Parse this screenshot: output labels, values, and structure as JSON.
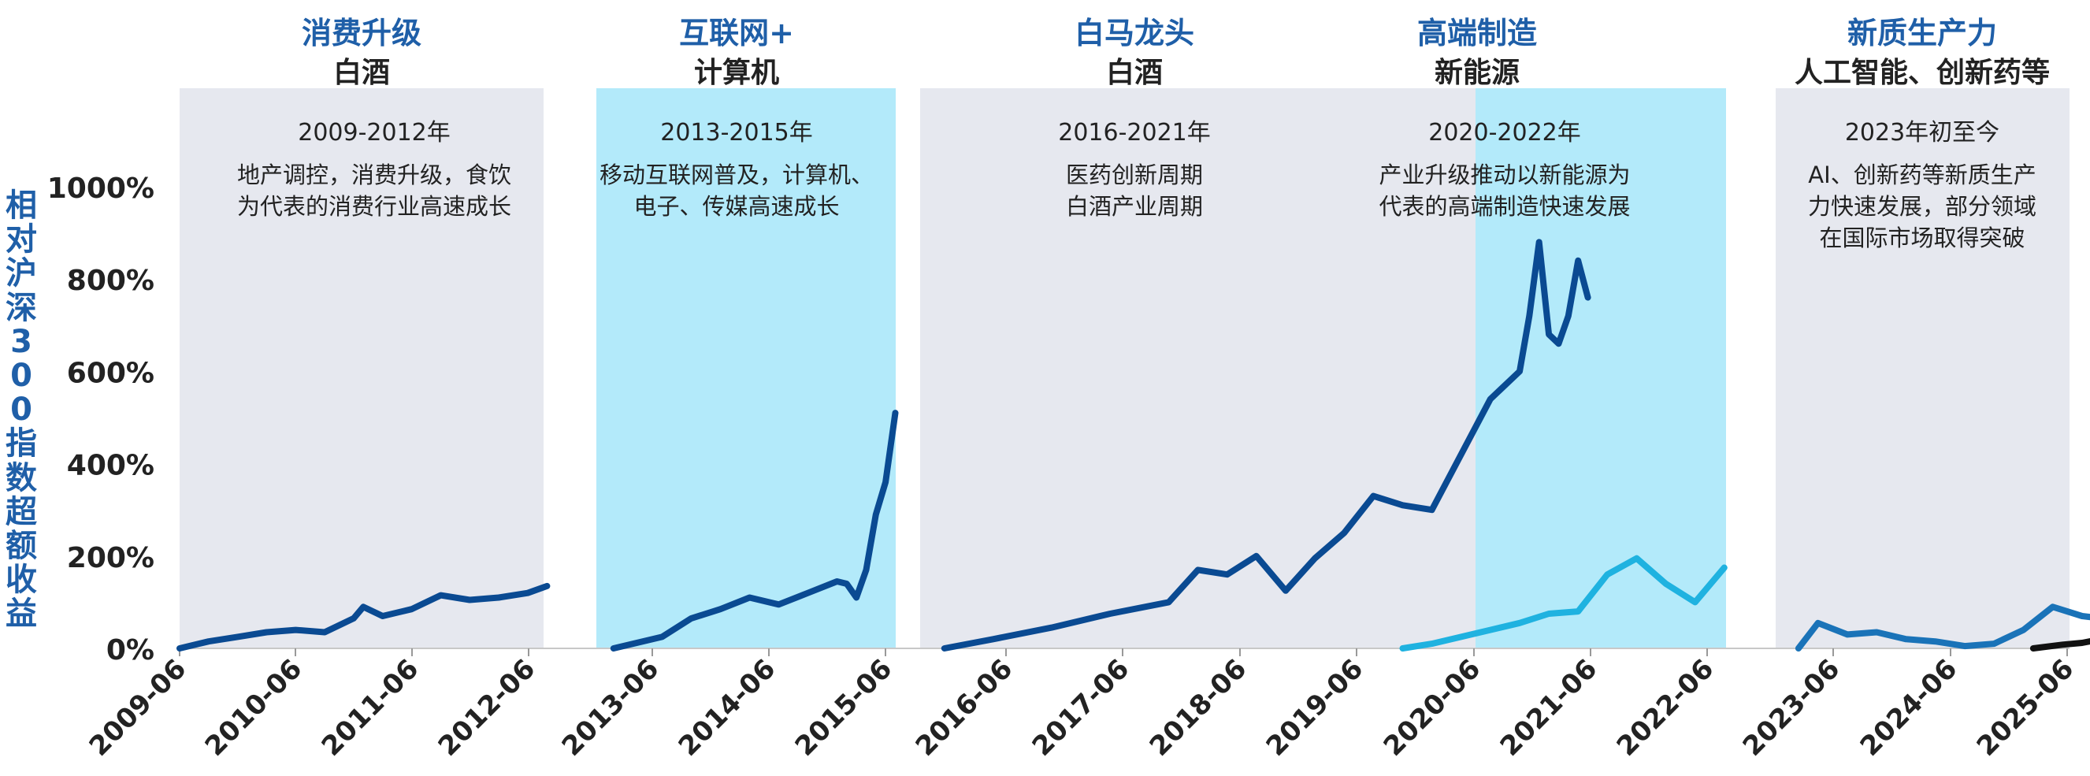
{
  "chart_data": {
    "type": "line",
    "ylabel": "相对沪深300指数超额收益",
    "y_ticks": [
      "0%",
      "200%",
      "400%",
      "600%",
      "800%",
      "1000%"
    ],
    "ylim": [
      0,
      1150
    ],
    "x_ticks": [
      "2009-06",
      "2010-06",
      "2011-06",
      "2012-06",
      "2013-06",
      "2014-06",
      "2015-06",
      "2016-06",
      "2017-06",
      "2018-06",
      "2019-06",
      "2020-06",
      "2021-06",
      "2022-06",
      "2023-06",
      "2024-06",
      "2025-06"
    ],
    "colors": {
      "band_grey": "#e6e8ef",
      "band_cyan": "#b3eafa",
      "dark_blue": "#0a4a92",
      "light_blue": "#1fb2e0",
      "mid_blue": "#1a73b8",
      "black": "#111111",
      "title_blue": "#1f5fa8"
    },
    "periods": [
      {
        "title": "消费升级",
        "subtitle": "白酒",
        "years": "2009-2012年",
        "desc": [
          "地产调控，消费升级，食饮",
          "为代表的消费行业高速成长"
        ],
        "band": "grey"
      },
      {
        "title": "互联网+",
        "subtitle": "计算机",
        "years": "2013-2015年",
        "desc": [
          "移动互联网普及，计算机、",
          "电子、传媒高速成长"
        ],
        "band": "cyan"
      },
      {
        "title": "白马龙头",
        "subtitle": "白酒",
        "years": "2016-2021年",
        "desc": [
          "医药创新周期",
          "白酒产业周期"
        ],
        "band": "grey"
      },
      {
        "title": "高端制造",
        "subtitle": "新能源",
        "years": "2020-2022年",
        "desc": [
          "产业升级推动以新能源为",
          "代表的高端制造快速发展"
        ],
        "band": "cyan"
      },
      {
        "title": "新质生产力",
        "subtitle": "人工智能、创新药等",
        "years": "2023年初至今",
        "desc": [
          "AI、创新药等新质生产",
          "力快速发展，部分领域",
          "在国际市场取得突破"
        ],
        "band": "grey"
      }
    ],
    "series": [
      {
        "color": "dark_blue",
        "x": [
          "2009-06",
          "2009-09",
          "2009-12",
          "2010-03",
          "2010-06",
          "2010-09",
          "2010-12",
          "2011-01",
          "2011-03",
          "2011-06",
          "2011-09",
          "2011-12",
          "2012-03",
          "2012-06",
          "2012-08"
        ],
        "values": [
          0,
          15,
          25,
          35,
          40,
          35,
          65,
          90,
          70,
          85,
          115,
          105,
          110,
          120,
          135
        ]
      },
      {
        "color": "dark_blue",
        "x": [
          "2013-01",
          "2013-06",
          "2013-09",
          "2013-12",
          "2014-03",
          "2014-06",
          "2014-09",
          "2014-12",
          "2015-01",
          "2015-02",
          "2015-03",
          "2015-04",
          "2015-05",
          "2015-06"
        ],
        "values": [
          0,
          25,
          65,
          85,
          110,
          95,
          120,
          145,
          140,
          110,
          170,
          290,
          360,
          510
        ]
      },
      {
        "color": "dark_blue",
        "x": [
          "2016-01",
          "2016-06",
          "2016-12",
          "2017-06",
          "2017-12",
          "2018-03",
          "2018-06",
          "2018-09",
          "2018-12",
          "2019-03",
          "2019-06",
          "2019-09",
          "2019-12",
          "2020-03",
          "2020-06",
          "2020-09",
          "2020-12",
          "2021-01",
          "2021-02",
          "2021-03",
          "2021-04",
          "2021-05",
          "2021-06",
          "2021-07"
        ],
        "values": [
          0,
          20,
          45,
          75,
          100,
          170,
          160,
          200,
          125,
          195,
          250,
          330,
          310,
          300,
          420,
          540,
          600,
          720,
          880,
          680,
          660,
          720,
          840,
          760
        ]
      },
      {
        "color": "light_blue",
        "x": [
          "2019-12",
          "2020-03",
          "2020-06",
          "2020-09",
          "2020-12",
          "2021-03",
          "2021-06",
          "2021-09",
          "2021-12",
          "2022-03",
          "2022-06",
          "2022-09"
        ],
        "values": [
          0,
          10,
          25,
          40,
          55,
          75,
          80,
          160,
          195,
          140,
          100,
          175
        ]
      },
      {
        "color": "mid_blue",
        "x": [
          "2023-01",
          "2023-03",
          "2023-06",
          "2023-09",
          "2023-12",
          "2024-03",
          "2024-06",
          "2024-09",
          "2024-12",
          "2025-03",
          "2025-06",
          "2025-08"
        ],
        "values": [
          0,
          55,
          30,
          35,
          20,
          15,
          5,
          10,
          40,
          90,
          70,
          65
        ]
      },
      {
        "color": "black",
        "x": [
          "2025-01",
          "2025-04",
          "2025-06",
          "2025-08"
        ],
        "values": [
          0,
          8,
          12,
          20
        ]
      }
    ]
  }
}
